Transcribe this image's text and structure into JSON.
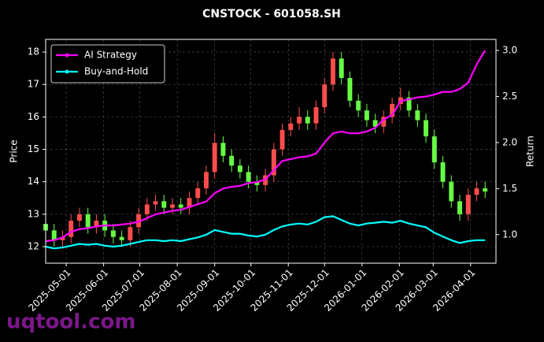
{
  "chart_data": {
    "type": "candlestick",
    "title": "CNSTOCK - 601058.SH",
    "ylabel": "Price",
    "y2label": "Return",
    "x": [
      "2025-04-14",
      "2025-04-21",
      "2025-04-28",
      "2025-05-05",
      "2025-05-12",
      "2025-05-19",
      "2025-05-26",
      "2025-06-02",
      "2025-06-09",
      "2025-06-16",
      "2025-06-23",
      "2025-06-30",
      "2025-07-07",
      "2025-07-14",
      "2025-07-21",
      "2025-07-28",
      "2025-08-04",
      "2025-08-11",
      "2025-08-18",
      "2025-08-25",
      "2025-09-01",
      "2025-09-08",
      "2025-09-15",
      "2025-09-22",
      "2025-09-29",
      "2025-10-06",
      "2025-10-13",
      "2025-10-20",
      "2025-10-27",
      "2025-11-03",
      "2025-11-10",
      "2025-11-17",
      "2025-11-24",
      "2025-12-01",
      "2025-12-08",
      "2025-12-15",
      "2025-12-22",
      "2025-12-29",
      "2026-01-05",
      "2026-01-12",
      "2026-01-19",
      "2026-01-26",
      "2026-02-02",
      "2026-02-09",
      "2026-02-16",
      "2026-02-23",
      "2026-03-02",
      "2026-03-09",
      "2026-03-16",
      "2026-03-23",
      "2026-03-30",
      "2026-04-06",
      "2026-04-13"
    ],
    "open": [
      12.7,
      12.5,
      12.2,
      12.3,
      12.8,
      13.0,
      12.6,
      12.8,
      12.5,
      12.3,
      12.2,
      12.6,
      13.0,
      13.3,
      13.4,
      13.2,
      13.3,
      13.2,
      13.5,
      13.8,
      14.3,
      15.2,
      14.8,
      14.5,
      14.3,
      14.0,
      13.9,
      14.2,
      15.0,
      15.6,
      15.8,
      16.0,
      15.8,
      16.3,
      17.0,
      17.8,
      17.2,
      16.5,
      16.2,
      15.9,
      15.7,
      16.0,
      16.4,
      16.6,
      16.2,
      15.9,
      15.4,
      14.6,
      14.0,
      13.4,
      13.0,
      13.6,
      13.8
    ],
    "high": [
      12.9,
      12.7,
      12.5,
      13.0,
      13.2,
      13.2,
      13.0,
      13.0,
      12.7,
      12.5,
      12.8,
      13.2,
      13.5,
      13.6,
      13.6,
      13.5,
      13.5,
      13.7,
      14.0,
      14.5,
      15.5,
      15.4,
      15.0,
      14.7,
      14.5,
      14.2,
      14.4,
      15.2,
      15.8,
      16.0,
      16.3,
      16.2,
      16.5,
      17.2,
      18.0,
      18.0,
      17.4,
      16.7,
      16.4,
      16.1,
      16.2,
      16.6,
      16.9,
      16.8,
      16.4,
      16.1,
      15.6,
      14.8,
      14.2,
      13.6,
      13.8,
      14.0,
      14.0
    ],
    "low": [
      12.3,
      12.0,
      12.0,
      12.1,
      12.6,
      12.4,
      12.4,
      12.3,
      12.1,
      12.0,
      12.0,
      12.4,
      12.8,
      13.1,
      13.0,
      13.0,
      13.0,
      13.0,
      13.3,
      13.6,
      14.1,
      14.6,
      14.3,
      14.1,
      13.8,
      13.7,
      13.7,
      14.0,
      14.8,
      15.4,
      15.6,
      15.6,
      15.6,
      16.1,
      16.8,
      17.0,
      16.3,
      16.0,
      15.7,
      15.5,
      15.5,
      15.8,
      16.2,
      16.0,
      15.7,
      15.2,
      14.4,
      13.8,
      13.2,
      12.8,
      12.8,
      13.4,
      13.5
    ],
    "close": [
      12.5,
      12.2,
      12.3,
      12.8,
      13.0,
      12.6,
      12.8,
      12.5,
      12.3,
      12.2,
      12.6,
      13.0,
      13.3,
      13.4,
      13.2,
      13.3,
      13.2,
      13.5,
      13.8,
      14.3,
      15.2,
      14.8,
      14.5,
      14.3,
      14.0,
      13.9,
      14.2,
      15.0,
      15.6,
      15.8,
      16.0,
      15.8,
      16.3,
      17.0,
      17.8,
      17.2,
      16.5,
      16.2,
      15.9,
      15.7,
      16.0,
      16.4,
      16.6,
      16.2,
      15.9,
      15.4,
      14.6,
      14.0,
      13.4,
      13.0,
      13.6,
      13.8,
      13.7
    ],
    "up_color": "#ff4d4d",
    "down_color": "#66ff44",
    "series": [
      {
        "name": "AI Strategy",
        "color": "#ff00ff",
        "axis": "y2",
        "values": [
          0.93,
          0.94,
          0.97,
          1.03,
          1.06,
          1.07,
          1.09,
          1.1,
          1.1,
          1.11,
          1.12,
          1.14,
          1.18,
          1.22,
          1.24,
          1.26,
          1.27,
          1.3,
          1.33,
          1.36,
          1.45,
          1.5,
          1.52,
          1.53,
          1.56,
          1.57,
          1.6,
          1.7,
          1.8,
          1.82,
          1.84,
          1.85,
          1.88,
          2.0,
          2.1,
          2.12,
          2.1,
          2.1,
          2.12,
          2.16,
          2.25,
          2.3,
          2.45,
          2.47,
          2.49,
          2.5,
          2.52,
          2.55,
          2.55,
          2.58,
          2.65,
          2.85,
          3.0
        ]
      },
      {
        "name": "Buy-and-Hold",
        "color": "#00ffff",
        "axis": "y2",
        "values": [
          0.87,
          0.85,
          0.86,
          0.88,
          0.9,
          0.89,
          0.9,
          0.88,
          0.87,
          0.88,
          0.9,
          0.92,
          0.94,
          0.94,
          0.93,
          0.94,
          0.93,
          0.95,
          0.97,
          1.0,
          1.05,
          1.03,
          1.01,
          1.01,
          0.99,
          0.98,
          1.0,
          1.05,
          1.09,
          1.11,
          1.12,
          1.11,
          1.14,
          1.19,
          1.2,
          1.16,
          1.12,
          1.1,
          1.12,
          1.13,
          1.14,
          1.13,
          1.15,
          1.12,
          1.1,
          1.08,
          1.02,
          0.98,
          0.94,
          0.91,
          0.93,
          0.94,
          0.94
        ]
      }
    ],
    "xlim": [
      "2025-04-14",
      "2026-04-22"
    ],
    "xticks": [
      "2025-05-01",
      "2025-06-01",
      "2025-07-01",
      "2025-08-01",
      "2025-09-01",
      "2025-10-01",
      "2025-11-01",
      "2025-12-01",
      "2026-01-01",
      "2026-02-01",
      "2026-03-01",
      "2026-04-01"
    ],
    "ylim": [
      11.49,
      18.39
    ],
    "yticks": [
      12,
      13,
      14,
      15,
      16,
      17,
      18
    ],
    "y2lim": [
      0.69,
      3.12
    ],
    "y2ticks": [
      {
        "value": 1,
        "label": "1.0"
      },
      1.5,
      {
        "value": 2,
        "label": "2.0"
      },
      2.5,
      {
        "value": 3,
        "label": "3.0"
      }
    ],
    "grid": true,
    "legend": "upper left"
  },
  "watermark": "uqtool.com"
}
